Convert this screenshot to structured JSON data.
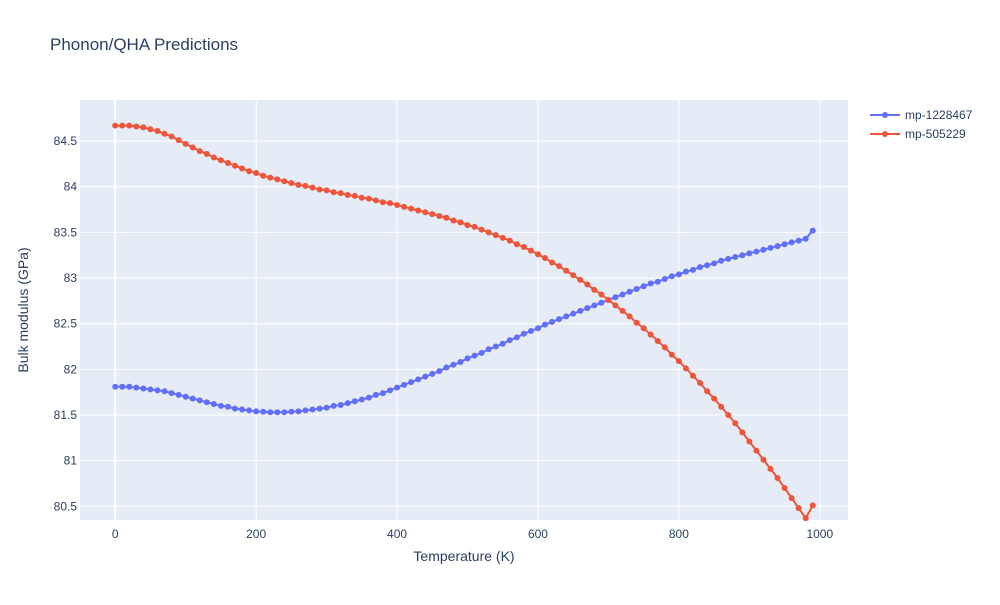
{
  "chart_data": {
    "type": "line",
    "title": "Phonon/QHA Predictions",
    "xlabel": "Temperature (K)",
    "ylabel": "Bulk modulus (GPa)",
    "xlim": [
      -50,
      1040
    ],
    "ylim": [
      80.35,
      84.95
    ],
    "xticks": [
      0,
      200,
      400,
      600,
      800,
      1000
    ],
    "xtick_labels": [
      "0",
      "200",
      "400",
      "600",
      "800",
      "1000"
    ],
    "yticks": [
      80.5,
      81,
      81.5,
      82,
      82.5,
      83,
      83.5,
      84,
      84.5
    ],
    "ytick_labels": [
      "80.5",
      "81",
      "81.5",
      "82",
      "82.5",
      "83",
      "83.5",
      "84",
      "84.5"
    ],
    "grid": true,
    "legend_position": "top-right",
    "x": [
      0,
      10,
      20,
      30,
      40,
      50,
      60,
      70,
      80,
      90,
      100,
      110,
      120,
      130,
      140,
      150,
      160,
      170,
      180,
      190,
      200,
      210,
      220,
      230,
      240,
      250,
      260,
      270,
      280,
      290,
      300,
      310,
      320,
      330,
      340,
      350,
      360,
      370,
      380,
      390,
      400,
      410,
      420,
      430,
      440,
      450,
      460,
      470,
      480,
      490,
      500,
      510,
      520,
      530,
      540,
      550,
      560,
      570,
      580,
      590,
      600,
      610,
      620,
      630,
      640,
      650,
      660,
      670,
      680,
      690,
      700,
      710,
      720,
      730,
      740,
      750,
      760,
      770,
      780,
      790,
      800,
      810,
      820,
      830,
      840,
      850,
      860,
      870,
      880,
      890,
      900,
      910,
      920,
      930,
      940,
      950,
      960,
      970,
      980,
      990
    ],
    "series": [
      {
        "name": "mp-1228467",
        "color": "#636efa",
        "values": [
          81.81,
          81.81,
          81.81,
          81.8,
          81.79,
          81.78,
          81.77,
          81.76,
          81.74,
          81.72,
          81.7,
          81.68,
          81.66,
          81.64,
          81.62,
          81.6,
          81.59,
          81.57,
          81.56,
          81.55,
          81.54,
          81.535,
          81.53,
          81.53,
          81.53,
          81.535,
          81.54,
          81.55,
          81.56,
          81.57,
          81.58,
          81.6,
          81.61,
          81.63,
          81.65,
          81.67,
          81.69,
          81.72,
          81.74,
          81.77,
          81.8,
          81.83,
          81.86,
          81.89,
          81.92,
          81.95,
          81.98,
          82.02,
          82.05,
          82.08,
          82.12,
          82.15,
          82.18,
          82.22,
          82.25,
          82.28,
          82.32,
          82.35,
          82.39,
          82.42,
          82.45,
          82.49,
          82.52,
          82.55,
          82.58,
          82.61,
          82.64,
          82.67,
          82.7,
          82.73,
          82.76,
          82.79,
          82.82,
          82.85,
          82.88,
          82.91,
          82.94,
          82.96,
          82.99,
          83.02,
          83.04,
          83.07,
          83.09,
          83.12,
          83.14,
          83.16,
          83.19,
          83.21,
          83.23,
          83.25,
          83.27,
          83.29,
          83.31,
          83.33,
          83.35,
          83.37,
          83.39,
          83.41,
          83.43,
          83.52
        ]
      },
      {
        "name": "mp-505229",
        "color": "#ef553b",
        "values": [
          84.67,
          84.67,
          84.67,
          84.66,
          84.65,
          84.63,
          84.61,
          84.58,
          84.55,
          84.51,
          84.47,
          84.43,
          84.39,
          84.36,
          84.32,
          84.29,
          84.26,
          84.23,
          84.2,
          84.17,
          84.15,
          84.12,
          84.1,
          84.08,
          84.06,
          84.04,
          84.02,
          84.01,
          83.99,
          83.97,
          83.96,
          83.94,
          83.93,
          83.91,
          83.9,
          83.88,
          83.87,
          83.85,
          83.83,
          83.82,
          83.8,
          83.78,
          83.76,
          83.74,
          83.72,
          83.7,
          83.68,
          83.66,
          83.63,
          83.61,
          83.58,
          83.56,
          83.53,
          83.5,
          83.47,
          83.44,
          83.41,
          83.37,
          83.34,
          83.3,
          83.26,
          83.22,
          83.17,
          83.13,
          83.08,
          83.03,
          82.98,
          82.93,
          82.87,
          82.82,
          82.76,
          82.7,
          82.64,
          82.58,
          82.51,
          82.45,
          82.38,
          82.31,
          82.24,
          82.16,
          82.09,
          82.01,
          81.93,
          81.85,
          81.76,
          81.68,
          81.59,
          81.5,
          81.41,
          81.31,
          81.21,
          81.11,
          81.01,
          80.91,
          80.81,
          80.7,
          80.59,
          80.48,
          80.37,
          80.51
        ]
      }
    ]
  }
}
